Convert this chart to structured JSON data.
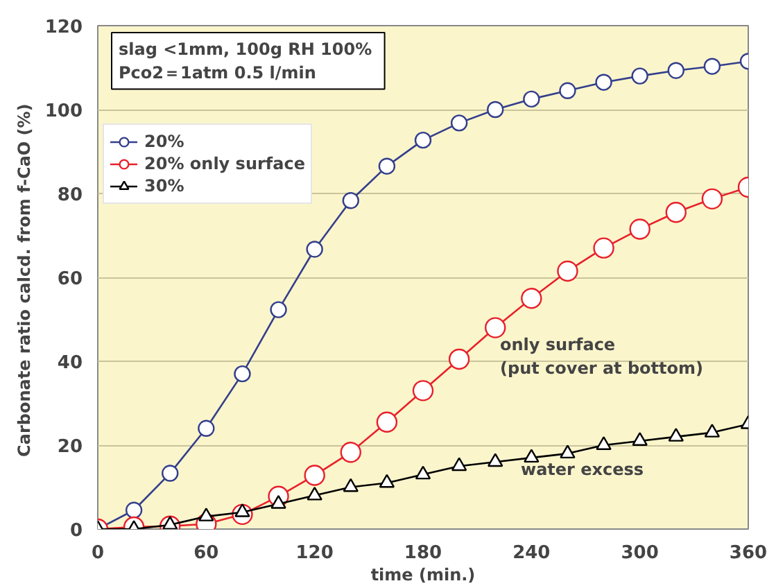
{
  "chart_data": {
    "type": "line",
    "xlabel": "time (min.)",
    "ylabel": "Carbonate ratio calcd. from f-CaO  (%)",
    "x": [
      0,
      20,
      40,
      60,
      80,
      100,
      120,
      140,
      160,
      180,
      200,
      220,
      240,
      260,
      280,
      300,
      320,
      340,
      360
    ],
    "series": [
      {
        "name": "20%",
        "color": "#333f8c",
        "marker": "circle",
        "values": [
          0,
          4.5,
          13.3,
          24,
          37,
          52.3,
          66.7,
          78.3,
          86.5,
          92.7,
          96.8,
          100,
          102.5,
          104.5,
          106.5,
          108,
          109.3,
          110.3,
          111.5
        ]
      },
      {
        "name": "20% only surface",
        "color": "#e8202a",
        "marker": "circle",
        "values": [
          0,
          0.5,
          0.7,
          1.2,
          3.5,
          7.8,
          12.8,
          18.3,
          25.5,
          33,
          40.5,
          48,
          55,
          61.5,
          67,
          71.5,
          75.5,
          78.7,
          81.5
        ]
      },
      {
        "name": "30%",
        "color": "#000000",
        "marker": "triangle",
        "values": [
          0,
          0,
          1,
          3,
          4,
          6,
          8,
          10,
          11,
          13,
          15,
          16,
          17,
          18,
          20,
          21,
          22,
          23,
          25
        ]
      }
    ],
    "xlim": [
      0,
      360
    ],
    "xticks": [
      0,
      60,
      120,
      180,
      240,
      300,
      360
    ],
    "ylim": [
      0,
      120
    ],
    "yticks": [
      0,
      20,
      40,
      60,
      80,
      100,
      120
    ],
    "grid": "y",
    "legend": "top left",
    "annotations": [
      "slag <1mm,  100g RH 100%\nPco2＝1atm   0.5 l/min",
      "only surface\n(put cover at bottom)",
      "water excess"
    ]
  }
}
